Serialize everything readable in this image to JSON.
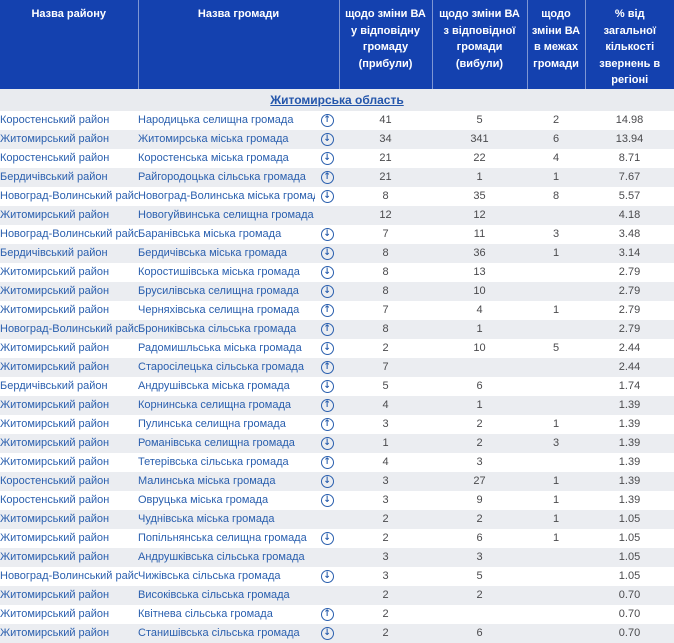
{
  "colors": {
    "header_bg": "#1441af",
    "header_text": "#ffffff",
    "link_blue": "#2456ab",
    "name_blue": "#2a5fae",
    "row_alt_bg": "#ebedf1",
    "section_bg": "#e9ebef",
    "number_text": "#4a4a4d"
  },
  "icons": {
    "trend_up": "↑",
    "trend_down": "↓"
  },
  "table": {
    "columns": [
      "Назва району",
      "Назва громади",
      "щодо зміни ВА у відповідну громаду (прибули)",
      "щодо зміни ВА з відповідної громади (вибули)",
      "щодо зміни ВА в межах громади",
      "% від загальної кількості звернень в регіоні"
    ]
  },
  "section": {
    "title": "Житомирська область"
  },
  "rows": [
    {
      "district": "Коростенський район",
      "community": "Народицька селищна громада",
      "trend": "up",
      "arrived": "41",
      "departed": "5",
      "within": "2",
      "percent": "14.98"
    },
    {
      "district": "Житомирський район",
      "community": "Житомирська міська громада",
      "trend": "down",
      "arrived": "34",
      "departed": "341",
      "within": "6",
      "percent": "13.94"
    },
    {
      "district": "Коростенський район",
      "community": "Коростенська міська громада",
      "trend": "down",
      "arrived": "21",
      "departed": "22",
      "within": "4",
      "percent": "8.71"
    },
    {
      "district": "Бердичівський район",
      "community": "Райгородоцька сільська громада",
      "trend": "up",
      "arrived": "21",
      "departed": "1",
      "within": "1",
      "percent": "7.67"
    },
    {
      "district": "Новоград-Волинський район",
      "community": "Новоград-Волинська міська громада",
      "trend": "down",
      "arrived": "8",
      "departed": "35",
      "within": "8",
      "percent": "5.57"
    },
    {
      "district": "Житомирський район",
      "community": "Новогуйвинська селищна громада",
      "trend": "",
      "arrived": "12",
      "departed": "12",
      "within": "",
      "percent": "4.18"
    },
    {
      "district": "Новоград-Волинський район",
      "community": "Баранівська міська громада",
      "trend": "down",
      "arrived": "7",
      "departed": "11",
      "within": "3",
      "percent": "3.48"
    },
    {
      "district": "Бердичівський район",
      "community": "Бердичівська міська громада",
      "trend": "down",
      "arrived": "8",
      "departed": "36",
      "within": "1",
      "percent": "3.14"
    },
    {
      "district": "Житомирський район",
      "community": "Коростишівська міська громада",
      "trend": "down",
      "arrived": "8",
      "departed": "13",
      "within": "",
      "percent": "2.79"
    },
    {
      "district": "Житомирський район",
      "community": "Брусилівська селищна громада",
      "trend": "down",
      "arrived": "8",
      "departed": "10",
      "within": "",
      "percent": "2.79"
    },
    {
      "district": "Житомирський район",
      "community": "Черняхівська селищна громада",
      "trend": "up",
      "arrived": "7",
      "departed": "4",
      "within": "1",
      "percent": "2.79"
    },
    {
      "district": "Новоград-Волинський район",
      "community": "Брониківська сільська громада",
      "trend": "up",
      "arrived": "8",
      "departed": "1",
      "within": "",
      "percent": "2.79"
    },
    {
      "district": "Житомирський район",
      "community": "Радомишльська міська громада",
      "trend": "down",
      "arrived": "2",
      "departed": "10",
      "within": "5",
      "percent": "2.44"
    },
    {
      "district": "Житомирський район",
      "community": "Старосілецька сільська громада",
      "trend": "up",
      "arrived": "7",
      "departed": "",
      "within": "",
      "percent": "2.44"
    },
    {
      "district": "Бердичівський район",
      "community": "Андрушівська міська громада",
      "trend": "down",
      "arrived": "5",
      "departed": "6",
      "within": "",
      "percent": "1.74"
    },
    {
      "district": "Житомирський район",
      "community": "Корнинська селищна громада",
      "trend": "up",
      "arrived": "4",
      "departed": "1",
      "within": "",
      "percent": "1.39"
    },
    {
      "district": "Житомирський район",
      "community": "Пулинська селищна громада",
      "trend": "up",
      "arrived": "3",
      "departed": "2",
      "within": "1",
      "percent": "1.39"
    },
    {
      "district": "Житомирський район",
      "community": "Романівська селищна громада",
      "trend": "down",
      "arrived": "1",
      "departed": "2",
      "within": "3",
      "percent": "1.39"
    },
    {
      "district": "Житомирський район",
      "community": "Тетерівська сільська громада",
      "trend": "up",
      "arrived": "4",
      "departed": "3",
      "within": "",
      "percent": "1.39"
    },
    {
      "district": "Коростенський район",
      "community": "Малинська міська громада",
      "trend": "down",
      "arrived": "3",
      "departed": "27",
      "within": "1",
      "percent": "1.39"
    },
    {
      "district": "Коростенський район",
      "community": "Овруцька міська громада",
      "trend": "down",
      "arrived": "3",
      "departed": "9",
      "within": "1",
      "percent": "1.39"
    },
    {
      "district": "Житомирський район",
      "community": "Чуднівська міська громада",
      "trend": "",
      "arrived": "2",
      "departed": "2",
      "within": "1",
      "percent": "1.05"
    },
    {
      "district": "Житомирський район",
      "community": "Попільнянська селищна громада",
      "trend": "down",
      "arrived": "2",
      "departed": "6",
      "within": "1",
      "percent": "1.05"
    },
    {
      "district": "Житомирський район",
      "community": "Андрушківська сільська громада",
      "trend": "",
      "arrived": "3",
      "departed": "3",
      "within": "",
      "percent": "1.05"
    },
    {
      "district": "Новоград-Волинський район",
      "community": "Чижівська сільська громада",
      "trend": "down",
      "arrived": "3",
      "departed": "5",
      "within": "",
      "percent": "1.05"
    },
    {
      "district": "Житомирський район",
      "community": "Високівська сільська громада",
      "trend": "",
      "arrived": "2",
      "departed": "2",
      "within": "",
      "percent": "0.70"
    },
    {
      "district": "Житомирський район",
      "community": "Квітнева сільська громада",
      "trend": "up",
      "arrived": "2",
      "departed": "",
      "within": "",
      "percent": "0.70"
    },
    {
      "district": "Житомирський район",
      "community": "Станишівська сільська громада",
      "trend": "down",
      "arrived": "2",
      "departed": "6",
      "within": "",
      "percent": "0.70"
    }
  ]
}
